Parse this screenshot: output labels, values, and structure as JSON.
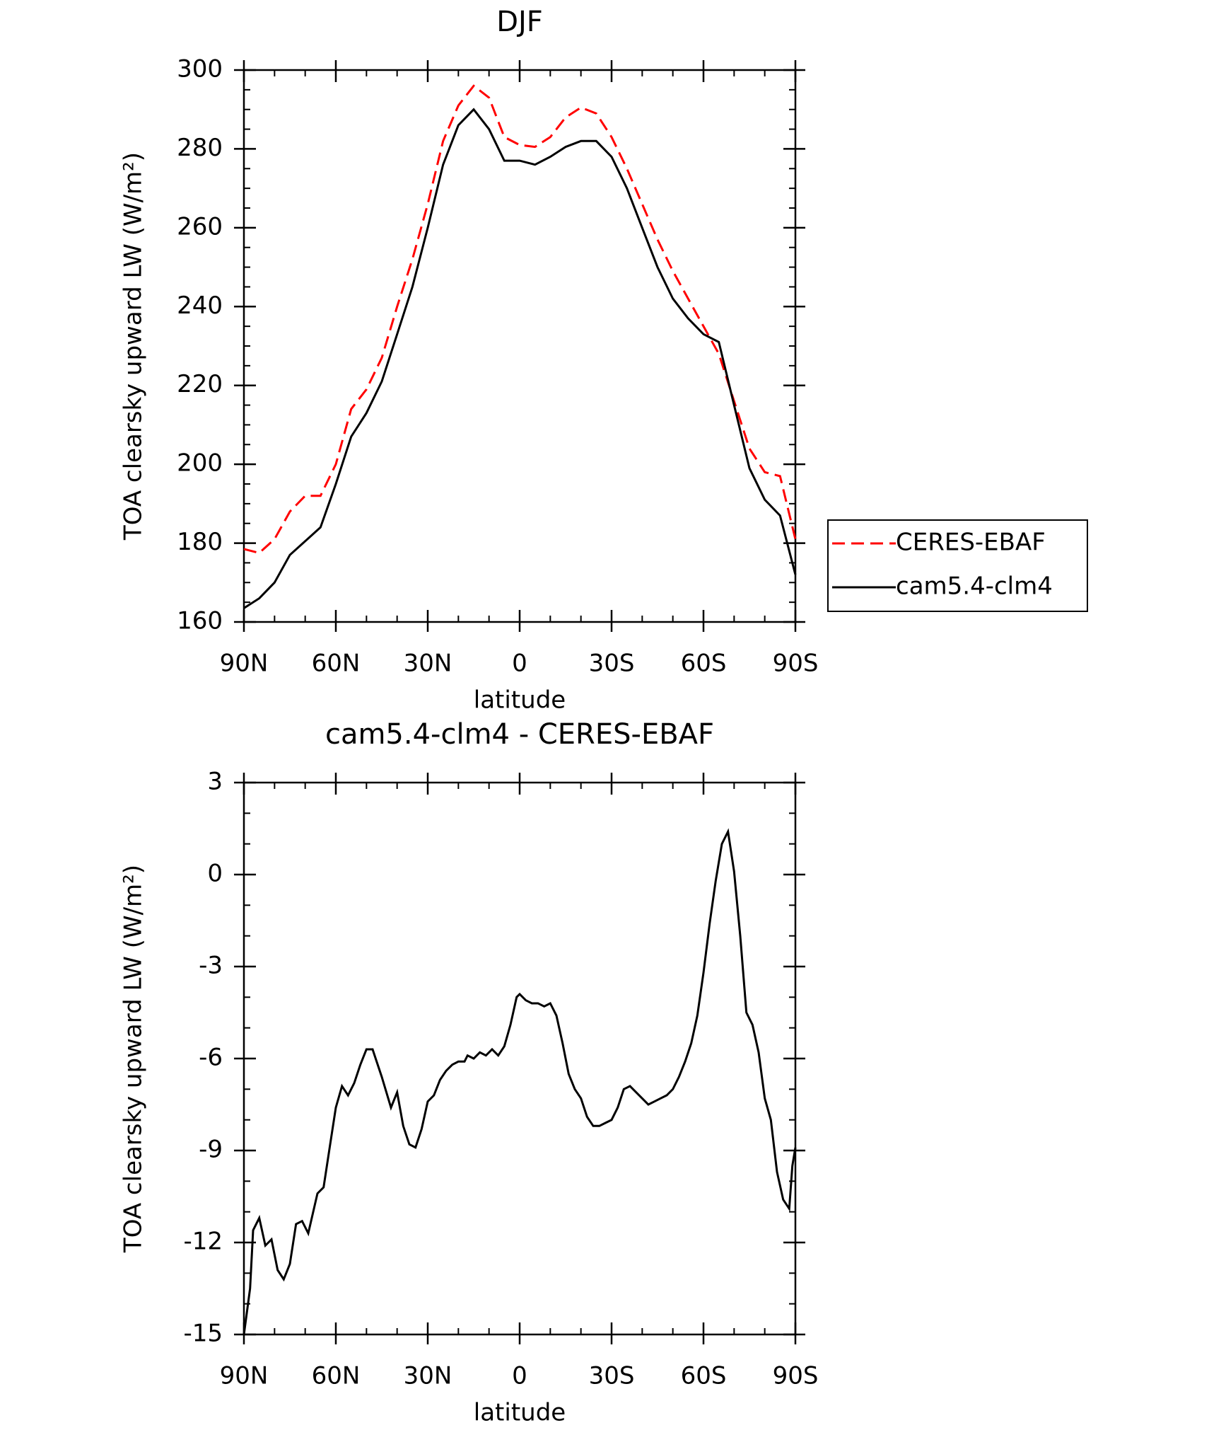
{
  "chart_data": [
    {
      "type": "line",
      "title": "DJF",
      "xlabel": "latitude",
      "ylabel": "TOA clearsky upward LW (W/m²)",
      "xlim": [
        90,
        -90
      ],
      "ylim": [
        160,
        300
      ],
      "xticks": [
        {
          "value": 90,
          "label": "90N"
        },
        {
          "value": 60,
          "label": "60N"
        },
        {
          "value": 30,
          "label": "30N"
        },
        0,
        {
          "value": -30,
          "label": "30S"
        },
        {
          "value": -60,
          "label": "60S"
        },
        {
          "value": -90,
          "label": "90S"
        }
      ],
      "yticks": [
        160,
        180,
        200,
        220,
        240,
        260,
        280,
        300
      ],
      "legend": "right",
      "x": [
        90,
        85,
        80,
        75,
        70,
        65,
        60,
        55,
        50,
        45,
        40,
        35,
        30,
        25,
        20,
        15,
        10,
        5,
        0,
        -5,
        -10,
        -15,
        -20,
        -25,
        -30,
        -35,
        -40,
        -45,
        -50,
        -55,
        -60,
        -65,
        -70,
        -75,
        -80,
        -85,
        -90
      ],
      "series": [
        {
          "name": "CERES-EBAF",
          "color": "#ff0000",
          "dashed": true,
          "values": [
            178.5,
            177.5,
            181,
            188,
            192,
            192,
            200,
            214,
            219,
            227,
            240,
            252,
            266,
            282,
            291,
            296,
            293,
            283,
            281,
            280.5,
            283,
            288,
            290.5,
            289,
            283,
            275,
            266,
            257,
            249,
            242,
            235,
            228,
            216,
            204,
            198,
            197,
            181
          ]
        },
        {
          "name": "cam5.4-clm4",
          "color": "#000000",
          "dashed": false,
          "values": [
            163.5,
            166,
            170,
            177,
            180.5,
            184,
            195,
            207,
            213,
            221,
            233,
            245,
            260,
            276,
            286,
            290,
            285,
            277,
            277,
            276,
            278,
            280.5,
            282,
            282,
            278,
            270,
            260,
            250,
            242,
            237,
            233,
            231,
            215,
            199,
            191,
            187,
            172
          ]
        }
      ]
    },
    {
      "type": "line",
      "title": "cam5.4-clm4 - CERES-EBAF",
      "xlabel": "latitude",
      "ylabel": "TOA clearsky upward LW (W/m²)",
      "xlim": [
        90,
        -90
      ],
      "ylim": [
        -15,
        3
      ],
      "xticks": [
        {
          "value": 90,
          "label": "90N"
        },
        {
          "value": 60,
          "label": "60N"
        },
        {
          "value": 30,
          "label": "30N"
        },
        0,
        {
          "value": -30,
          "label": "30S"
        },
        {
          "value": -60,
          "label": "60S"
        },
        {
          "value": -90,
          "label": "90S"
        }
      ],
      "yticks": [
        -15,
        -12,
        -9,
        -6,
        -3,
        0,
        3
      ],
      "x": [
        90,
        88,
        87,
        85,
        83,
        81,
        79,
        77,
        75,
        73,
        71,
        69,
        66,
        64,
        62,
        60,
        58,
        56,
        54,
        52,
        50,
        48,
        47,
        45,
        42,
        40,
        38,
        36,
        34,
        32,
        30,
        28,
        26,
        24,
        22,
        20,
        18,
        17,
        15,
        13,
        11,
        9,
        7,
        5,
        3,
        1,
        0,
        -2,
        -4,
        -6,
        -8,
        -10,
        -12,
        -14,
        -16,
        -18,
        -20,
        -22,
        -24,
        -26,
        -28,
        -30,
        -32,
        -34,
        -36,
        -38,
        -40,
        -42,
        -44,
        -46,
        -48,
        -50,
        -52,
        -54,
        -56,
        -58,
        -60,
        -62,
        -64,
        -66,
        -68,
        -70,
        -72,
        -74,
        -76,
        -78,
        -80,
        -82,
        -84,
        -86,
        -88,
        -89,
        -90
      ],
      "series": [
        {
          "color": "#000000",
          "dashed": false,
          "values": [
            -15,
            -13.5,
            -11.6,
            -11.2,
            -12.1,
            -11.9,
            -12.9,
            -13.2,
            -12.7,
            -11.4,
            -11.3,
            -11.7,
            -10.4,
            -10.2,
            -8.9,
            -7.6,
            -6.9,
            -7.2,
            -6.8,
            -6.2,
            -5.7,
            -5.7,
            -6.0,
            -6.6,
            -7.6,
            -7.1,
            -8.2,
            -8.8,
            -8.9,
            -8.3,
            -7.4,
            -7.2,
            -6.7,
            -6.4,
            -6.2,
            -6.1,
            -6.1,
            -5.9,
            -6.0,
            -5.8,
            -5.9,
            -5.7,
            -5.9,
            -5.6,
            -4.9,
            -4.0,
            -3.9,
            -4.1,
            -4.2,
            -4.2,
            -4.3,
            -4.2,
            -4.6,
            -5.5,
            -6.5,
            -7.0,
            -7.3,
            -7.9,
            -8.2,
            -8.2,
            -8.1,
            -8.0,
            -7.6,
            -7.0,
            -6.9,
            -7.1,
            -7.3,
            -7.5,
            -7.4,
            -7.3,
            -7.2,
            -7.0,
            -6.6,
            -6.1,
            -5.5,
            -4.6,
            -3.2,
            -1.6,
            -0.2,
            1.0,
            1.4,
            0.1,
            -2.0,
            -4.5,
            -4.9,
            -5.8,
            -7.3,
            -8.0,
            -9.7,
            -10.6,
            -10.9,
            -9.5,
            -8.9
          ]
        }
      ]
    }
  ]
}
